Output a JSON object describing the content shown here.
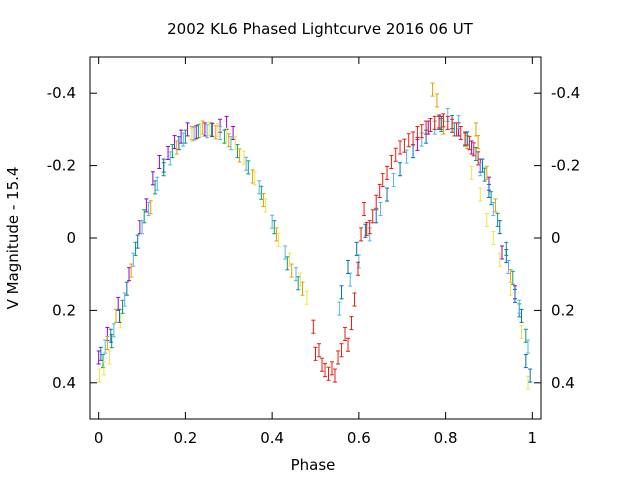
{
  "chart_data": {
    "type": "scatter",
    "title": "2002 KL6 Phased Lightcurve 2016 06 UT",
    "xlabel": "Phase",
    "ylabel": "V Magnitude - 15.4",
    "xlim": [
      -0.02,
      1.02
    ],
    "ylim": [
      0.5,
      -0.5
    ],
    "y_inverted": true,
    "grid": false,
    "mirror_right_axis": true,
    "x_ticks": [
      0,
      0.2,
      0.4,
      0.6,
      0.8,
      1
    ],
    "x_tick_labels": [
      "0",
      "0.2",
      "0.4",
      "0.6",
      "0.8",
      "1"
    ],
    "y_ticks": [
      -0.4,
      -0.2,
      0,
      0.2,
      0.4
    ],
    "y_tick_labels": [
      "-0.4",
      "-0.2",
      "0",
      "0.2",
      "0.4"
    ],
    "colors": [
      "#9400D3",
      "#009E73",
      "#56B4E9",
      "#E69F00",
      "#F0E442",
      "#0072B2",
      "#E51E10"
    ],
    "series": [
      {
        "color": "#9400D3",
        "points": [
          [
            0.0,
            0.33
          ],
          [
            0.02,
            0.265
          ],
          [
            0.045,
            0.182
          ],
          [
            0.07,
            0.1
          ],
          [
            0.095,
            -0.03
          ],
          [
            0.11,
            -0.09
          ],
          [
            0.125,
            -0.165
          ],
          [
            0.14,
            -0.21
          ],
          [
            0.16,
            -0.235
          ],
          [
            0.175,
            -0.265
          ],
          [
            0.19,
            -0.28
          ],
          [
            0.205,
            -0.3
          ],
          [
            0.225,
            -0.292
          ],
          [
            0.245,
            -0.3
          ],
          [
            0.262,
            -0.298
          ],
          [
            0.28,
            -0.31
          ],
          [
            0.295,
            -0.318
          ],
          [
            0.31,
            -0.29
          ],
          [
            0.735,
            -0.26
          ],
          [
            0.76,
            -0.305
          ],
          [
            0.79,
            -0.318
          ],
          [
            0.83,
            -0.3
          ],
          [
            0.86,
            -0.25
          ],
          [
            0.88,
            -0.2
          ],
          [
            0.9,
            -0.15
          ],
          [
            0.93,
            0.04
          ],
          [
            0.96,
            0.15
          ]
        ]
      },
      {
        "color": "#009E73",
        "points": [
          [
            0.01,
            0.34
          ],
          [
            0.03,
            0.285
          ],
          [
            0.055,
            0.19
          ],
          [
            0.085,
            0.03
          ],
          [
            0.105,
            -0.06
          ],
          [
            0.13,
            -0.14
          ],
          [
            0.15,
            -0.19
          ],
          [
            0.17,
            -0.24
          ],
          [
            0.2,
            -0.28
          ],
          [
            0.23,
            -0.295
          ],
          [
            0.26,
            -0.3
          ],
          [
            0.29,
            -0.28
          ],
          [
            0.32,
            -0.24
          ],
          [
            0.345,
            -0.195
          ],
          [
            0.375,
            -0.125
          ],
          [
            0.405,
            -0.03
          ],
          [
            0.435,
            0.07
          ],
          [
            0.46,
            0.125
          ],
          [
            0.79,
            -0.312
          ],
          [
            0.82,
            -0.3
          ],
          [
            0.845,
            -0.272
          ],
          [
            0.87,
            -0.232
          ],
          [
            0.89,
            -0.175
          ],
          [
            0.905,
            -0.11
          ],
          [
            0.92,
            -0.05
          ],
          [
            0.94,
            0.03
          ],
          [
            0.955,
            0.11
          ],
          [
            0.97,
            0.2
          ],
          [
            0.985,
            0.27
          ]
        ]
      },
      {
        "color": "#56B4E9",
        "points": [
          [
            0.015,
            0.3
          ],
          [
            0.035,
            0.255
          ],
          [
            0.06,
            0.17
          ],
          [
            0.08,
            0.06
          ],
          [
            0.1,
            -0.03
          ],
          [
            0.115,
            -0.08
          ],
          [
            0.135,
            -0.15
          ],
          [
            0.165,
            -0.22
          ],
          [
            0.195,
            -0.272
          ],
          [
            0.22,
            -0.288
          ],
          [
            0.25,
            -0.295
          ],
          [
            0.28,
            -0.29
          ],
          [
            0.305,
            -0.262
          ],
          [
            0.34,
            -0.205
          ],
          [
            0.37,
            -0.14
          ],
          [
            0.4,
            -0.045
          ],
          [
            0.43,
            0.04
          ],
          [
            0.455,
            0.1
          ],
          [
            0.555,
            0.195
          ],
          [
            0.58,
            0.115
          ],
          [
            0.6,
            0.065
          ],
          [
            0.625,
            -0.01
          ],
          [
            0.65,
            -0.08
          ],
          [
            0.68,
            -0.16
          ],
          [
            0.71,
            -0.225
          ],
          [
            0.745,
            -0.272
          ],
          [
            0.775,
            -0.305
          ],
          [
            0.805,
            -0.34
          ],
          [
            0.83,
            -0.32
          ],
          [
            0.88,
            -0.19
          ],
          [
            0.91,
            -0.08
          ],
          [
            0.945,
            0.08
          ],
          [
            0.97,
            0.19
          ],
          [
            0.99,
            0.3
          ]
        ]
      },
      {
        "color": "#E69F00",
        "points": [
          [
            0.02,
            0.29
          ],
          [
            0.04,
            0.215
          ],
          [
            0.075,
            0.09
          ],
          [
            0.12,
            -0.085
          ],
          [
            0.18,
            -0.25
          ],
          [
            0.215,
            -0.29
          ],
          [
            0.24,
            -0.305
          ],
          [
            0.27,
            -0.292
          ],
          [
            0.3,
            -0.27
          ],
          [
            0.325,
            -0.228
          ],
          [
            0.355,
            -0.17
          ],
          [
            0.38,
            -0.105
          ],
          [
            0.41,
            -0.01
          ],
          [
            0.445,
            0.09
          ],
          [
            0.47,
            0.14
          ],
          [
            0.77,
            -0.41
          ],
          [
            0.78,
            -0.38
          ],
          [
            0.795,
            -0.305
          ],
          [
            0.85,
            -0.265
          ],
          [
            0.87,
            -0.3
          ],
          [
            0.875,
            -0.265
          ],
          [
            0.895,
            -0.18
          ],
          [
            0.915,
            -0.09
          ],
          [
            0.95,
            0.105
          ]
        ]
      },
      {
        "color": "#F0E442",
        "points": [
          [
            0.002,
            0.38
          ],
          [
            0.012,
            0.36
          ],
          [
            0.025,
            0.33
          ],
          [
            0.05,
            0.23
          ],
          [
            0.215,
            -0.285
          ],
          [
            0.235,
            -0.298
          ],
          [
            0.255,
            -0.302
          ],
          [
            0.275,
            -0.298
          ],
          [
            0.295,
            -0.285
          ],
          [
            0.315,
            -0.262
          ],
          [
            0.335,
            -0.222
          ],
          [
            0.36,
            -0.165
          ],
          [
            0.385,
            -0.09
          ],
          [
            0.415,
            0.005
          ],
          [
            0.44,
            0.06
          ],
          [
            0.465,
            0.115
          ],
          [
            0.48,
            0.165
          ],
          [
            0.86,
            -0.18
          ],
          [
            0.88,
            -0.12
          ],
          [
            0.895,
            -0.05
          ],
          [
            0.91,
            0.0
          ],
          [
            0.925,
            0.06
          ],
          [
            0.95,
            0.14
          ],
          [
            0.975,
            0.26
          ],
          [
            0.99,
            0.4
          ]
        ]
      },
      {
        "color": "#0072B2",
        "points": [
          [
            0.005,
            0.32
          ],
          [
            0.028,
            0.27
          ],
          [
            0.048,
            0.215
          ],
          [
            0.065,
            0.14
          ],
          [
            0.09,
            0.01
          ],
          [
            0.15,
            -0.2
          ],
          [
            0.185,
            -0.262
          ],
          [
            0.56,
            0.15
          ],
          [
            0.575,
            0.08
          ],
          [
            0.595,
            0.03
          ],
          [
            0.615,
            -0.02
          ],
          [
            0.64,
            -0.06
          ],
          [
            0.665,
            -0.12
          ],
          [
            0.695,
            -0.19
          ],
          [
            0.725,
            -0.24
          ],
          [
            0.755,
            -0.28
          ],
          [
            0.785,
            -0.318
          ],
          [
            0.815,
            -0.32
          ],
          [
            0.85,
            -0.275
          ],
          [
            0.885,
            -0.2
          ],
          [
            0.9,
            -0.13
          ],
          [
            0.925,
            -0.03
          ],
          [
            0.94,
            0.05
          ],
          [
            0.96,
            0.16
          ],
          [
            0.975,
            0.215
          ],
          [
            0.985,
            0.34
          ],
          [
            0.995,
            0.38
          ]
        ]
      },
      {
        "color": "#E51E10",
        "points": [
          [
            0.495,
            0.245
          ],
          [
            0.5,
            0.32
          ],
          [
            0.508,
            0.31
          ],
          [
            0.515,
            0.35
          ],
          [
            0.522,
            0.365
          ],
          [
            0.53,
            0.375
          ],
          [
            0.538,
            0.36
          ],
          [
            0.545,
            0.38
          ],
          [
            0.552,
            0.33
          ],
          [
            0.56,
            0.31
          ],
          [
            0.568,
            0.265
          ],
          [
            0.575,
            0.295
          ],
          [
            0.583,
            0.235
          ],
          [
            0.59,
            0.17
          ],
          [
            0.598,
            0.085
          ],
          [
            0.605,
            -0.01
          ],
          [
            0.612,
            -0.08
          ],
          [
            0.618,
            -0.025
          ],
          [
            0.625,
            -0.03
          ],
          [
            0.632,
            -0.06
          ],
          [
            0.64,
            -0.1
          ],
          [
            0.648,
            -0.13
          ],
          [
            0.655,
            -0.16
          ],
          [
            0.665,
            -0.18
          ],
          [
            0.675,
            -0.21
          ],
          [
            0.685,
            -0.23
          ],
          [
            0.695,
            -0.25
          ],
          [
            0.705,
            -0.255
          ],
          [
            0.715,
            -0.27
          ],
          [
            0.725,
            -0.275
          ],
          [
            0.735,
            -0.29
          ],
          [
            0.745,
            -0.295
          ],
          [
            0.755,
            -0.305
          ],
          [
            0.765,
            -0.312
          ],
          [
            0.775,
            -0.318
          ],
          [
            0.785,
            -0.322
          ],
          [
            0.795,
            -0.325
          ],
          [
            0.805,
            -0.318
          ],
          [
            0.815,
            -0.31
          ],
          [
            0.825,
            -0.3
          ],
          [
            0.835,
            -0.29
          ],
          [
            0.845,
            -0.275
          ],
          [
            0.855,
            -0.262
          ],
          [
            0.865,
            -0.245
          ],
          [
            0.875,
            -0.22
          ]
        ]
      }
    ]
  }
}
